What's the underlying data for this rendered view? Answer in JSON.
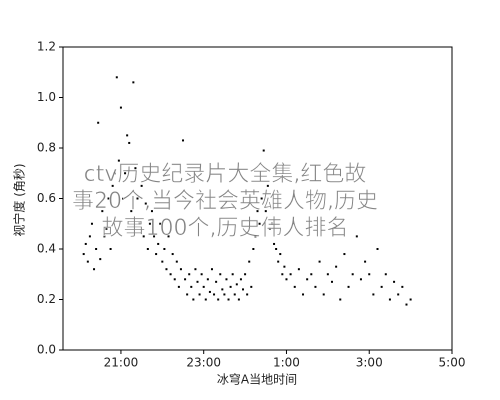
{
  "chart_data": {
    "type": "scatter",
    "xlabel": "冰穹A当地时间",
    "ylabel": "视宁度 (角秒)",
    "watermark": [
      "ctv历史纪录片大全集,红色故",
      "事20个,当今社会英雄人物,历史",
      "故事100个,历史伟人排名"
    ],
    "color": "#000000",
    "xlim": [
      19.6,
      29
    ],
    "ylim": [
      0,
      1.2
    ],
    "xticks": [
      {
        "value": 21,
        "label": "21:00"
      },
      {
        "value": 23,
        "label": "23:00"
      },
      {
        "value": 25,
        "label": "1:00"
      },
      {
        "value": 27,
        "label": "3:00"
      },
      {
        "value": 29,
        "label": "5:00"
      }
    ],
    "yticks": [
      {
        "value": 0,
        "label": "0.0"
      },
      {
        "value": 0.2,
        "label": "0.2"
      },
      {
        "value": 0.4,
        "label": "0.4"
      },
      {
        "value": 0.6,
        "label": "0.6"
      },
      {
        "value": 0.8,
        "label": "0.8"
      },
      {
        "value": 1.0,
        "label": "1.0"
      },
      {
        "value": 1.2,
        "label": "1.2"
      }
    ],
    "x": [
      20.1,
      20.15,
      20.2,
      20.25,
      20.3,
      20.35,
      20.4,
      20.45,
      20.5,
      20.55,
      20.6,
      20.65,
      20.7,
      20.75,
      20.8,
      20.85,
      20.9,
      20.95,
      21.0,
      21.05,
      21.1,
      21.15,
      21.2,
      21.25,
      21.3,
      21.35,
      21.4,
      21.45,
      21.5,
      21.55,
      21.6,
      21.65,
      21.7,
      21.75,
      21.8,
      21.85,
      21.9,
      21.95,
      22.0,
      22.05,
      22.1,
      22.15,
      22.2,
      22.25,
      22.3,
      22.35,
      22.4,
      22.45,
      22.5,
      22.55,
      22.6,
      22.65,
      22.7,
      22.75,
      22.8,
      22.85,
      22.9,
      22.95,
      23.0,
      23.05,
      23.1,
      23.15,
      23.2,
      23.25,
      23.3,
      23.35,
      23.4,
      23.45,
      23.5,
      23.55,
      23.6,
      23.65,
      23.7,
      23.75,
      23.8,
      23.85,
      23.9,
      23.95,
      24.0,
      24.05,
      24.1,
      24.15,
      24.2,
      24.25,
      24.3,
      24.35,
      24.4,
      24.45,
      24.5,
      24.55,
      24.6,
      24.65,
      24.7,
      24.75,
      24.8,
      24.85,
      24.9,
      24.95,
      25.0,
      25.1,
      25.2,
      25.3,
      25.4,
      25.5,
      25.6,
      25.7,
      25.8,
      25.9,
      26.0,
      26.1,
      26.2,
      26.3,
      26.4,
      26.5,
      26.6,
      26.7,
      26.8,
      26.9,
      27.0,
      27.1,
      27.2,
      27.3,
      27.4,
      27.5,
      27.6,
      27.7,
      27.8,
      27.9,
      28.0
    ],
    "values": [
      0.38,
      0.42,
      0.35,
      0.45,
      0.5,
      0.32,
      0.4,
      0.9,
      0.36,
      0.55,
      0.45,
      0.48,
      0.6,
      0.4,
      0.65,
      0.7,
      1.08,
      0.75,
      0.96,
      0.6,
      0.7,
      0.85,
      0.82,
      0.55,
      1.06,
      0.72,
      0.6,
      0.5,
      0.65,
      0.45,
      0.58,
      0.4,
      0.5,
      0.55,
      0.45,
      0.38,
      0.42,
      0.5,
      0.35,
      0.4,
      0.32,
      0.45,
      0.3,
      0.38,
      0.28,
      0.35,
      0.25,
      0.32,
      0.83,
      0.28,
      0.22,
      0.3,
      0.25,
      0.2,
      0.32,
      0.27,
      0.22,
      0.3,
      0.25,
      0.2,
      0.28,
      0.23,
      0.32,
      0.22,
      0.27,
      0.2,
      0.3,
      0.24,
      0.22,
      0.28,
      0.2,
      0.25,
      0.3,
      0.22,
      0.26,
      0.2,
      0.28,
      0.24,
      0.3,
      0.22,
      0.35,
      0.25,
      0.4,
      0.45,
      0.55,
      0.5,
      0.6,
      0.79,
      0.55,
      0.65,
      0.48,
      0.5,
      0.42,
      0.4,
      0.35,
      0.38,
      0.3,
      0.33,
      0.28,
      0.3,
      0.25,
      0.32,
      0.22,
      0.28,
      0.3,
      0.25,
      0.35,
      0.22,
      0.3,
      0.27,
      0.33,
      0.2,
      0.38,
      0.25,
      0.3,
      0.45,
      0.28,
      0.35,
      0.3,
      0.22,
      0.4,
      0.25,
      0.3,
      0.2,
      0.27,
      0.22,
      0.25,
      0.18,
      0.2
    ]
  }
}
